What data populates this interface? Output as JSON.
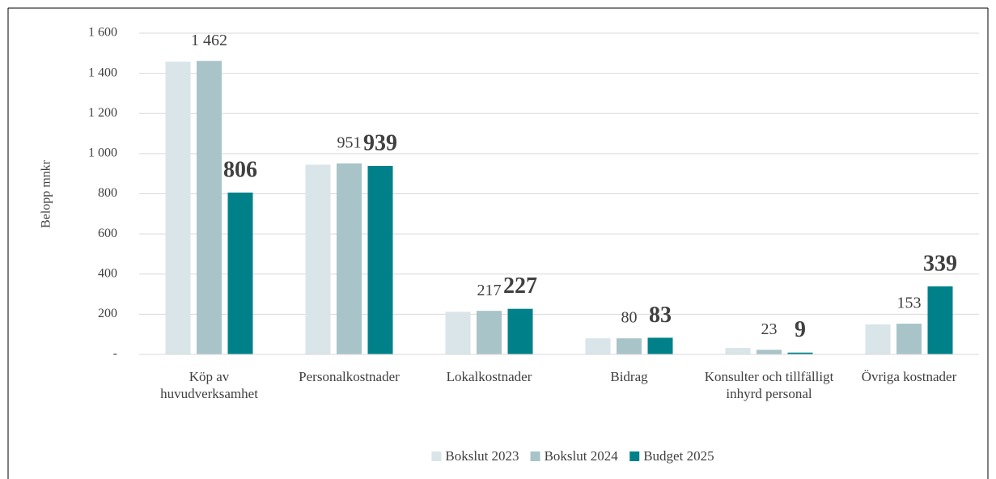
{
  "chart_data": {
    "type": "bar",
    "ylabel": "Belopp mnkr",
    "categories": [
      "Köp av huvudverksamhet",
      "Personalkostnader",
      "Lokalkostnader",
      "Bidrag",
      "Konsulter och tillfälligt inhyrd personal",
      "Övriga kostnader"
    ],
    "series": [
      {
        "name": "Bokslut 2023",
        "color": "#d9e5e8",
        "values": [
          1458,
          945,
          212,
          80,
          32,
          150
        ]
      },
      {
        "name": "Bokslut 2024",
        "color": "#a8c4c8",
        "values": [
          1462,
          951,
          217,
          80,
          23,
          153
        ],
        "value_labels": [
          "1 462",
          "951",
          "217",
          "80",
          "23",
          "153"
        ]
      },
      {
        "name": "Budget 2025",
        "color": "#00818a",
        "values": [
          806,
          939,
          227,
          83,
          9,
          339
        ]
      }
    ],
    "ylim": [
      0,
      1600
    ],
    "yticks": [
      {
        "value": 0,
        "label": "-"
      },
      200,
      400,
      600,
      800,
      {
        "value": 1000,
        "label": "1 000"
      },
      {
        "value": 1200,
        "label": "1 200"
      },
      {
        "value": 1400,
        "label": "1 400"
      },
      {
        "value": 1600,
        "label": "1 600"
      }
    ],
    "grid": true,
    "legend": "bottom"
  }
}
